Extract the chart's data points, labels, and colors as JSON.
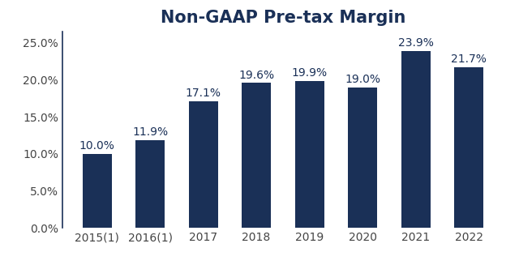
{
  "title": "Non-GAAP Pre-tax Margin",
  "categories": [
    "2015(1)",
    "2016(1)",
    "2017",
    "2018",
    "2019",
    "2020",
    "2021",
    "2022"
  ],
  "values": [
    10.0,
    11.9,
    17.1,
    19.6,
    19.9,
    19.0,
    23.9,
    21.7
  ],
  "labels": [
    "10.0%",
    "11.9%",
    "17.1%",
    "19.6%",
    "19.9%",
    "19.0%",
    "23.9%",
    "21.7%"
  ],
  "bar_color": "#1a3057",
  "background_color": "#ffffff",
  "ylim": [
    0,
    26.5
  ],
  "yticks": [
    0,
    5,
    10,
    15,
    20,
    25
  ],
  "ytick_labels": [
    "0.0%",
    "5.0%",
    "10.0%",
    "15.0%",
    "20.0%",
    "25.0%"
  ],
  "title_fontsize": 15,
  "tick_fontsize": 10,
  "label_fontsize": 10,
  "title_color": "#1a3057",
  "tick_color": "#444444",
  "spine_color": "#1a3057"
}
